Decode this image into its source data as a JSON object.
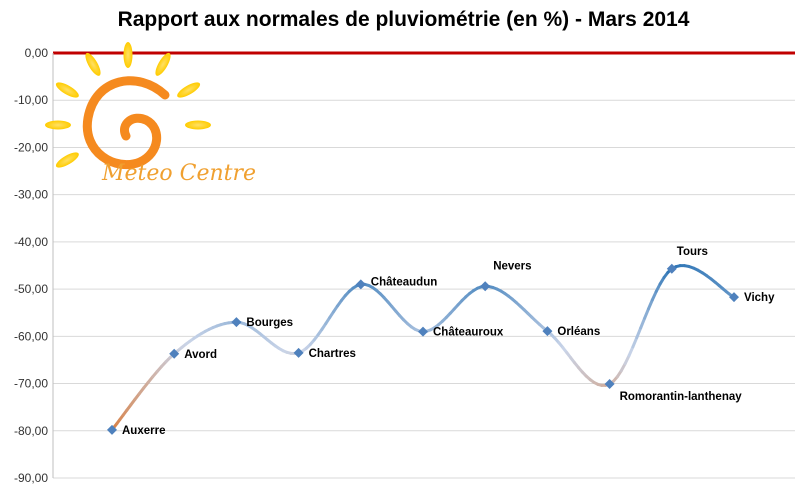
{
  "chart_data": {
    "type": "line",
    "title": "Rapport aux normales de pluviométrie (en %) - Mars 2014",
    "xlabel": "",
    "ylabel": "",
    "ylim": [
      -90,
      0
    ],
    "yticks": [
      0,
      -10,
      -20,
      -30,
      -40,
      -50,
      -60,
      -70,
      -80,
      -90
    ],
    "ytick_labels": [
      "0,00",
      "-10,00",
      "-20,00",
      "-30,00",
      "-40,00",
      "-50,00",
      "-60,00",
      "-70,00",
      "-80,00",
      "-90,00"
    ],
    "grid": true,
    "legend": "none",
    "reference_line": {
      "value": 0,
      "color": "#c00000"
    },
    "categories": [
      "Auxerre",
      "Avord",
      "Bourges",
      "Chartres",
      "Châteaudun",
      "Châteauroux",
      "Nevers",
      "Orléans",
      "Romorantin-lanthenay",
      "Tours",
      "Vichy"
    ],
    "series": [
      {
        "values": [
          -79.8,
          -63.7,
          -57.0,
          -63.5,
          -49.0,
          -59.0,
          -49.4,
          -58.9,
          -70.1,
          -45.7,
          -51.7
        ]
      }
    ],
    "colors": {
      "positive_low": "#d97b3a",
      "neutral": "#c9d4e8",
      "high": "#2e75b6",
      "marker": "#4f81bd"
    }
  },
  "logo": {
    "text": "Meteo Centre",
    "icon": "sun-icon"
  }
}
